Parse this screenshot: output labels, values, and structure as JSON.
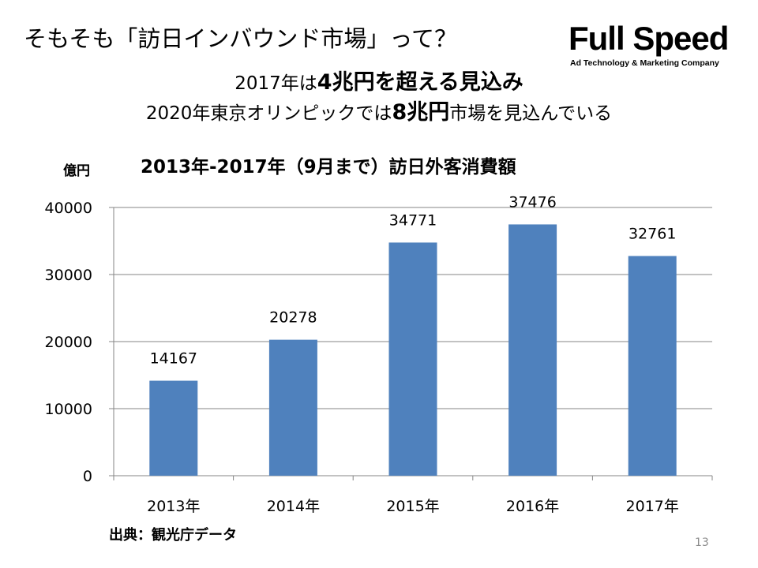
{
  "slide": {
    "title": "そもそも「訪日インバウンド市場」って？",
    "headline1": {
      "prefix": "2017年は",
      "emphasis": "4兆円を超える見込み",
      "suffix": ""
    },
    "headline2": {
      "prefix": "2020年東京オリンピックでは",
      "emphasis": "8兆円",
      "suffix": "市場を見込んでいる"
    },
    "source": "出典：観光庁データ",
    "page_number": "13"
  },
  "logo": {
    "name": "Full Speed",
    "tagline": "Ad Technology & Marketing Company"
  },
  "chart_data": {
    "type": "bar",
    "title": "2013年-2017年（9月まで）訪日外客消費額",
    "ylabel": "億円",
    "xlabel": "",
    "categories": [
      "2013年",
      "2014年",
      "2015年",
      "2016年",
      "2017年"
    ],
    "values": [
      14167,
      20278,
      34771,
      37476,
      32761
    ],
    "ylim": [
      0,
      40000
    ],
    "yticks": [
      0,
      10000,
      20000,
      30000,
      40000
    ],
    "grid": true,
    "legend": "none",
    "bar_color": "#4F81BD",
    "grid_color": "#868686"
  }
}
